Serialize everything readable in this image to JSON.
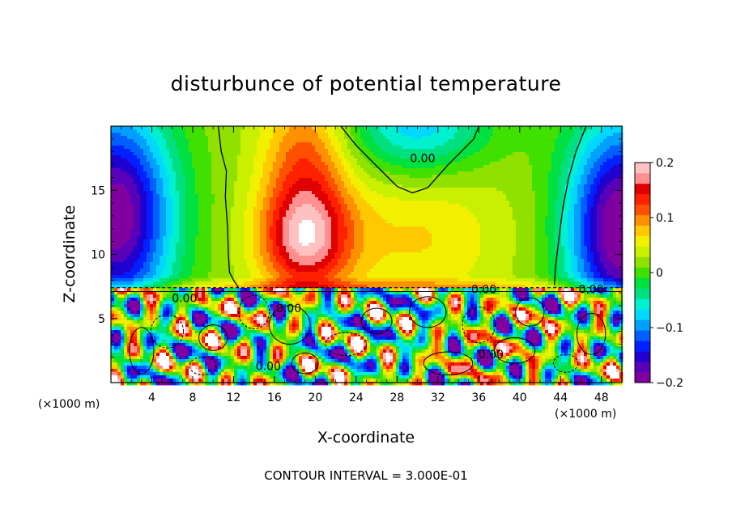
{
  "chart_data": {
    "type": "heatmap",
    "title": "disturbunce of potential temperature",
    "xlabel": "X-coordinate",
    "ylabel": "Z-coordinate",
    "x_unit": "(×1000 m)",
    "x_unit_right": "(×1000 m)",
    "footer": "CONTOUR INTERVAL = 3.000E-01",
    "xlim": [
      0,
      50
    ],
    "ylim": [
      0,
      20
    ],
    "x_ticks": [
      4,
      8,
      12,
      16,
      20,
      24,
      28,
      32,
      36,
      40,
      44,
      48
    ],
    "y_ticks": [
      5,
      10,
      15
    ],
    "colorbar": {
      "min": -0.2,
      "max": 0.2,
      "tick_labels": [
        "0.2",
        "0.1",
        "0",
        "−0.1",
        "−0.2"
      ],
      "tick_values": [
        0.2,
        0.1,
        0,
        -0.1,
        -0.2
      ],
      "colors": [
        "#8000a0",
        "#5a00b8",
        "#2000d0",
        "#0020ff",
        "#0060ff",
        "#00a0ff",
        "#00d8ff",
        "#00f0d0",
        "#00e080",
        "#00e040",
        "#40e000",
        "#90e000",
        "#c8f000",
        "#f0f000",
        "#ffc800",
        "#ff9000",
        "#ff5000",
        "#ff2000",
        "#e00000",
        "#ff9090",
        "#ffc0c0"
      ]
    },
    "contour_labels": [
      {
        "text": "0.00",
        "x": 30.5,
        "y": 17.5
      },
      {
        "text": "0.00",
        "x": 36.5,
        "y": 7.3
      },
      {
        "text": "0.00",
        "x": 47,
        "y": 7.3
      },
      {
        "text": "0.00",
        "x": 7.2,
        "y": 6.6
      },
      {
        "text": "0.00",
        "x": 17.4,
        "y": 5.8
      },
      {
        "text": "0.00",
        "x": 37.2,
        "y": 2.2
      },
      {
        "text": "0.00",
        "x": 15.4,
        "y": 1.3
      }
    ]
  }
}
